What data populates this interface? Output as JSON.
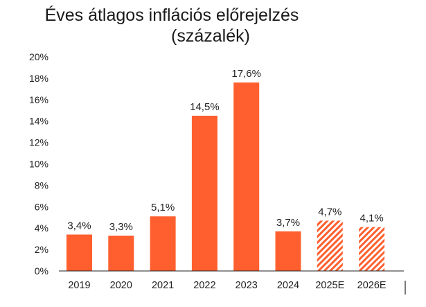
{
  "chart_data": {
    "type": "bar",
    "title_lines": [
      "Éves átlagos inflációs előrejelzés",
      "(százalék)"
    ],
    "categories": [
      "2019",
      "2020",
      "2021",
      "2022",
      "2023",
      "2024",
      "2025E",
      "2026E"
    ],
    "values": [
      3.4,
      3.3,
      5.1,
      14.5,
      17.6,
      3.7,
      4.7,
      4.1
    ],
    "value_labels": [
      "3,4%",
      "3,3%",
      "5,1%",
      "14,5%",
      "17,6%",
      "3,7%",
      "4,7%",
      "4,1%"
    ],
    "forecast": [
      false,
      false,
      false,
      false,
      false,
      false,
      true,
      true
    ],
    "y_ticks": [
      0,
      2,
      4,
      6,
      8,
      10,
      12,
      14,
      16,
      18,
      20
    ],
    "y_tick_labels": [
      "0%",
      "2%",
      "4%",
      "6%",
      "8%",
      "10%",
      "12%",
      "14%",
      "16%",
      "18%",
      "20%"
    ],
    "ylim": [
      0,
      20
    ],
    "grid": false,
    "legend": "none",
    "colors": {
      "bar": "#FF5F2E",
      "forecast_stripe": "#FF5F2E",
      "forecast_bg": "#FFFFFF",
      "axis": "#222222"
    }
  }
}
